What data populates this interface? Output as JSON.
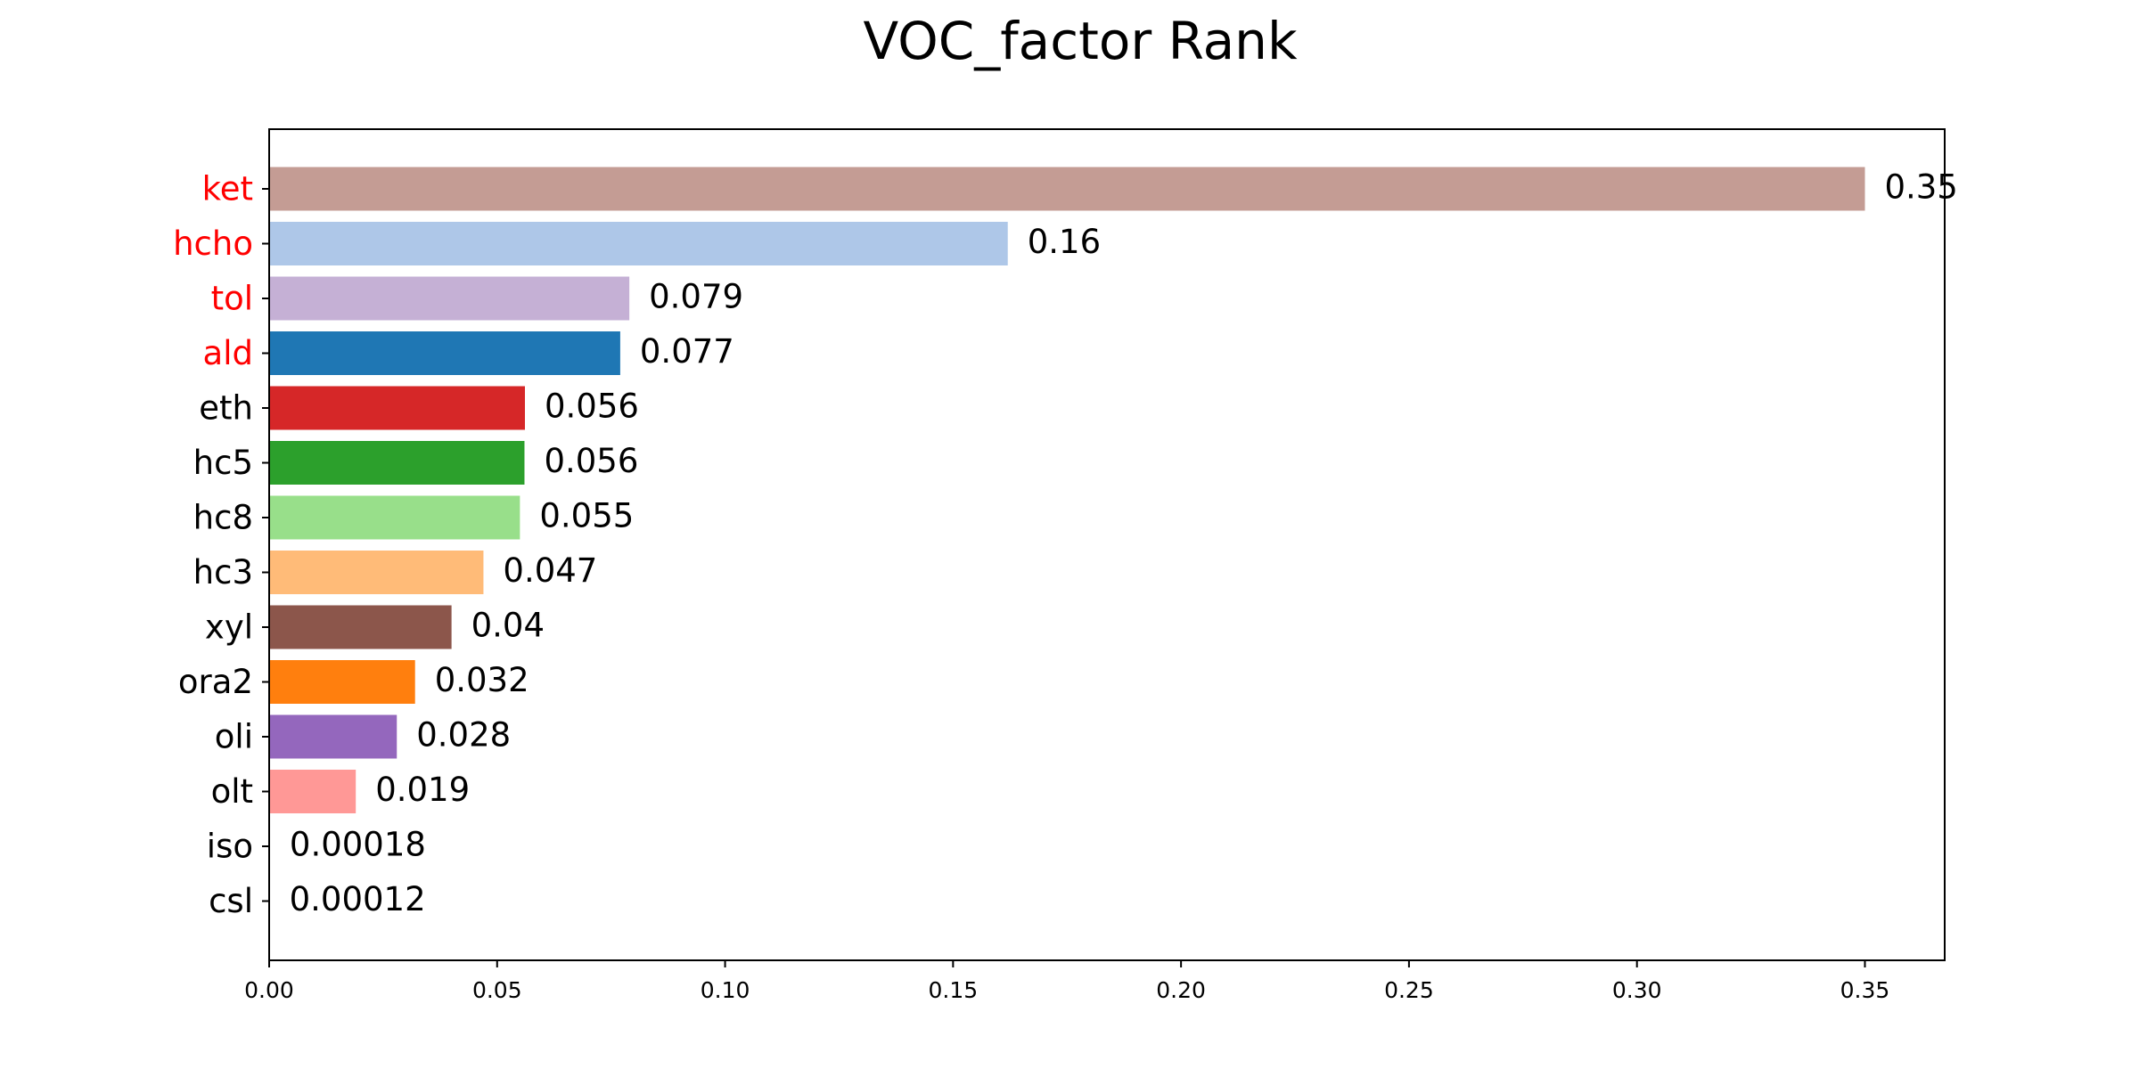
{
  "chart_data": {
    "type": "bar",
    "orientation": "horizontal",
    "title": "VOC_factor Rank",
    "xlabel": "",
    "ylabel": "",
    "xlim": [
      0,
      0.3675
    ],
    "grid": false,
    "categories": [
      "ket",
      "hcho",
      "tol",
      "ald",
      "eth",
      "hc5",
      "hc8",
      "hc3",
      "xyl",
      "ora2",
      "oli",
      "olt",
      "iso",
      "csl"
    ],
    "values": [
      0.35,
      0.162,
      0.079,
      0.077,
      0.0561,
      0.056,
      0.055,
      0.047,
      0.04,
      0.032,
      0.028,
      0.019,
      0.00018,
      0.00012
    ],
    "value_labels": [
      "0.35",
      "0.16",
      "0.079",
      "0.077",
      "0.056",
      "0.056",
      "0.055",
      "0.047",
      "0.04",
      "0.032",
      "0.028",
      "0.019",
      "0.00018",
      "0.00012"
    ],
    "bar_colors": [
      "#c49c94",
      "#aec7e8",
      "#c5b0d5",
      "#1f77b4",
      "#d62728",
      "#2ca02c",
      "#98df8a",
      "#ffbb78",
      "#8c564b",
      "#ff7f0e",
      "#9467bd",
      "#ff9896",
      "#e377c2",
      "#7f7f7f"
    ],
    "label_colors": [
      "#ff0000",
      "#ff0000",
      "#ff0000",
      "#ff0000",
      "#000000",
      "#000000",
      "#000000",
      "#000000",
      "#000000",
      "#000000",
      "#000000",
      "#000000",
      "#000000",
      "#000000"
    ],
    "x_ticks": [
      0.0,
      0.05,
      0.1,
      0.15,
      0.2,
      0.25,
      0.3,
      0.35
    ],
    "x_tick_labels": [
      "0.00",
      "0.05",
      "0.10",
      "0.15",
      "0.20",
      "0.25",
      "0.30",
      "0.35"
    ]
  }
}
